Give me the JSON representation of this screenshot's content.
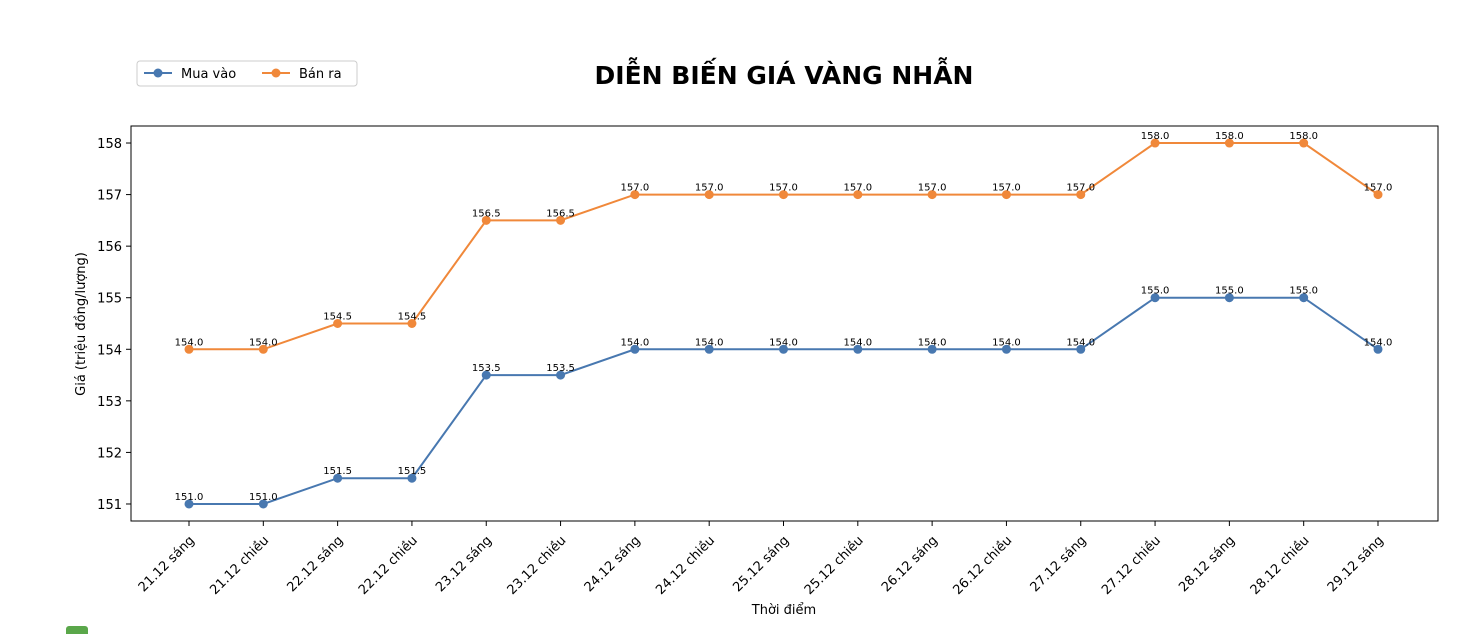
{
  "chart_data": {
    "type": "line",
    "title": "DIỄN BIẾN GIÁ VÀNG NHẪN",
    "xlabel": "Thời điểm",
    "ylabel": "Giá (triệu đồng/lượng)",
    "categories": [
      "21.12 sáng",
      "21.12 chiều",
      "22.12 sáng",
      "22.12 chiều",
      "23.12 sáng",
      "23.12 chiều",
      "24.12 sáng",
      "24.12 chiều",
      "25.12 sáng",
      "25.12 chiều",
      "26.12 sáng",
      "26.12 chiều",
      "27.12 sáng",
      "27.12 chiều",
      "28.12 sáng",
      "28.12 chiều",
      "29.12 sáng"
    ],
    "series": [
      {
        "name": "Mua vào",
        "color": "#4878b0",
        "values": [
          151.0,
          151.0,
          151.5,
          151.5,
          153.5,
          153.5,
          154.0,
          154.0,
          154.0,
          154.0,
          154.0,
          154.0,
          154.0,
          155.0,
          155.0,
          155.0,
          154.0
        ]
      },
      {
        "name": "Bán ra",
        "color": "#f0883a",
        "values": [
          154.0,
          154.0,
          154.5,
          154.5,
          156.5,
          156.5,
          157.0,
          157.0,
          157.0,
          157.0,
          157.0,
          157.0,
          157.0,
          158.0,
          158.0,
          158.0,
          157.0
        ]
      }
    ],
    "yticks": [
      151,
      152,
      153,
      154,
      155,
      156,
      157,
      158
    ],
    "ylim": [
      150.67,
      158.33
    ],
    "grid": false,
    "legend_position": "top-left",
    "data_label_format": "one-decimal"
  }
}
